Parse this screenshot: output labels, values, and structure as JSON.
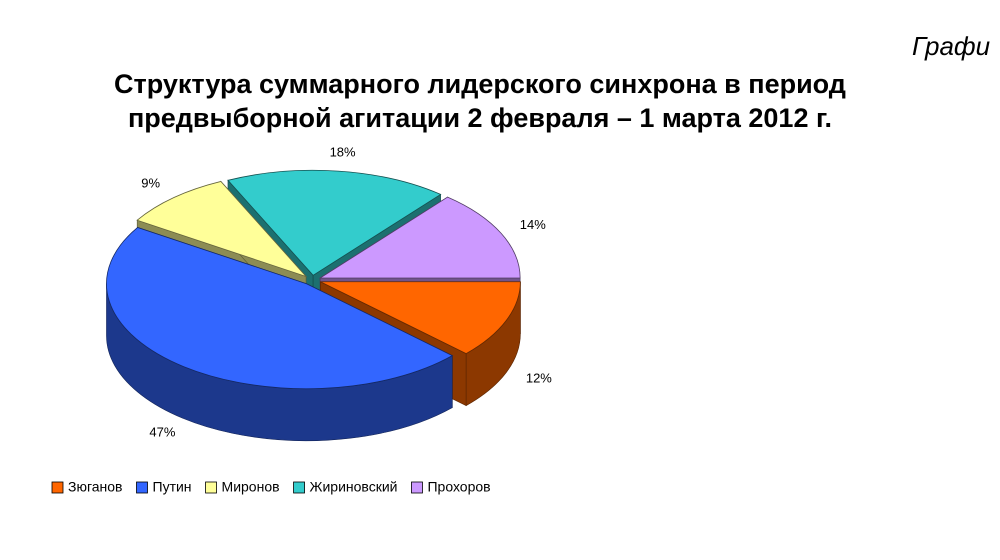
{
  "chart_data": {
    "type": "pie3d",
    "annotation": "Графи",
    "title": [
      "Структура суммарного лидерского синхрона в период",
      "предвыборной агитации 2 февраля – 1 марта 2012 г."
    ],
    "categories": [
      "Зюганов",
      "Путин",
      "Миронов",
      "Жириновский",
      "Прохоров"
    ],
    "values": [
      12,
      47,
      9,
      18,
      14
    ],
    "value_labels": [
      "12%",
      "47%",
      "9%",
      "18%",
      "14%"
    ],
    "colors": [
      "#ff6600",
      "#3366ff",
      "#ffff99",
      "#33cccc",
      "#cc99ff"
    ],
    "legend": "bottom"
  }
}
